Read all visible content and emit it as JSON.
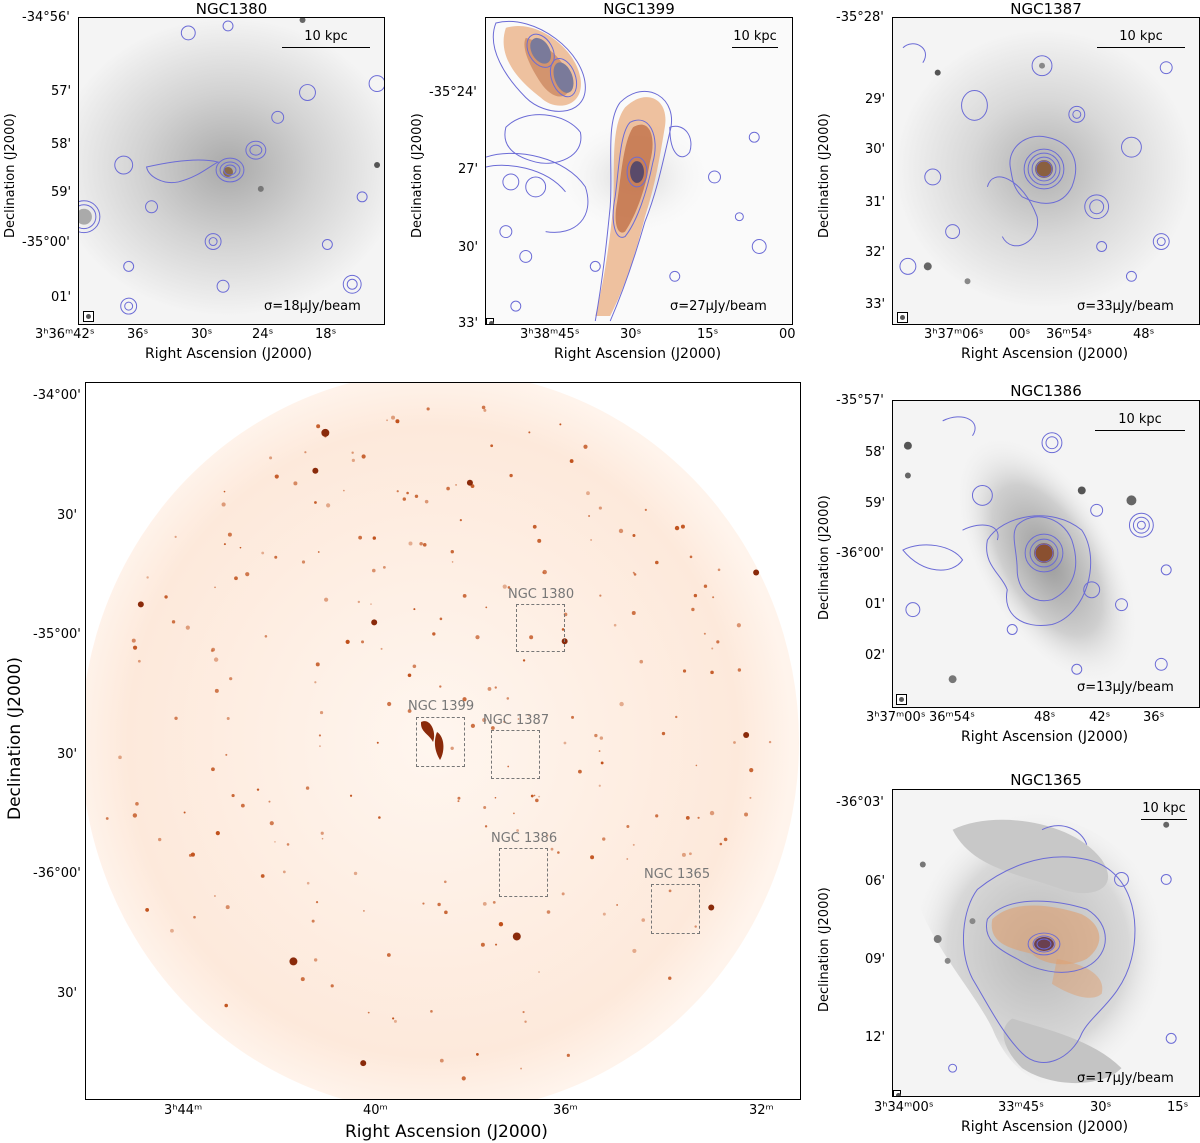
{
  "main": {
    "xlabel": "Right Ascension (J2000)",
    "ylabel": "Declination (J2000)",
    "xticks": [
      "3ʰ44ᵐ",
      "40ᵐ",
      "36ᵐ",
      "32ᵐ"
    ],
    "yticks": [
      "-34°00'",
      "30'",
      "-35°00'",
      "30'",
      "-36°00'",
      "30'"
    ],
    "boxes": [
      "NGC 1380",
      "NGC 1399",
      "NGC 1387",
      "NGC 1386",
      "NGC 1365"
    ]
  },
  "panels": [
    {
      "title": "NGC1380",
      "sigma": "σ=18μJy/beam",
      "scale": "10 kpc",
      "yticks": [
        "-34°56'",
        "57'",
        "58'",
        "59'",
        "-35°00'",
        "01'"
      ],
      "xticks": [
        "3ʰ36ᵐ42ˢ",
        "36ˢ",
        "30ˢ",
        "24ˢ",
        "18ˢ"
      ],
      "xlabel": "Right Ascension (J2000)",
      "ylabel": "Declination (J2000)"
    },
    {
      "title": "NGC1399",
      "sigma": "σ=27μJy/beam",
      "scale": "10 kpc",
      "yticks": [
        "-35°24'",
        "27'",
        "30'",
        "33'"
      ],
      "xticks": [
        "3ʰ38ᵐ45ˢ",
        "30ˢ",
        "15ˢ",
        "00"
      ],
      "xlabel": "Right Ascension (J2000)",
      "ylabel": "Declination (J2000)"
    },
    {
      "title": "NGC1387",
      "sigma": "σ=33μJy/beam",
      "scale": "10 kpc",
      "yticks": [
        "-35°28'",
        "29'",
        "30'",
        "31'",
        "32'",
        "33'"
      ],
      "xticks": [
        "3ʰ37ᵐ06ˢ",
        "00ˢ",
        "36ᵐ54ˢ",
        "48ˢ"
      ],
      "xlabel": "Right Ascension (J2000)",
      "ylabel": "Declination (J2000)"
    },
    {
      "title": "NGC1386",
      "sigma": "σ=13μJy/beam",
      "scale": "10 kpc",
      "yticks": [
        "-35°57'",
        "58'",
        "59'",
        "-36°00'",
        "01'",
        "02'"
      ],
      "xticks": [
        "3ʰ37ᵐ00ˢ",
        "36ᵐ54ˢ",
        "48ˢ",
        "42ˢ",
        "36ˢ"
      ],
      "xlabel": "Right Ascension (J2000)",
      "ylabel": "Declination (J2000)"
    },
    {
      "title": "NGC1365",
      "sigma": "σ=17μJy/beam",
      "scale": "10 kpc",
      "yticks": [
        "-36°03'",
        "06'",
        "09'",
        "12'"
      ],
      "xticks": [
        "3ʰ34ᵐ00ˢ",
        "33ᵐ45ˢ",
        "30ˢ",
        "15ˢ"
      ],
      "xlabel": "Right Ascension (J2000)",
      "ylabel": "Declination (J2000)"
    }
  ],
  "colors": {
    "contour": "#6b6bd6",
    "radio": "#c0501a",
    "dashed": "#777777"
  }
}
